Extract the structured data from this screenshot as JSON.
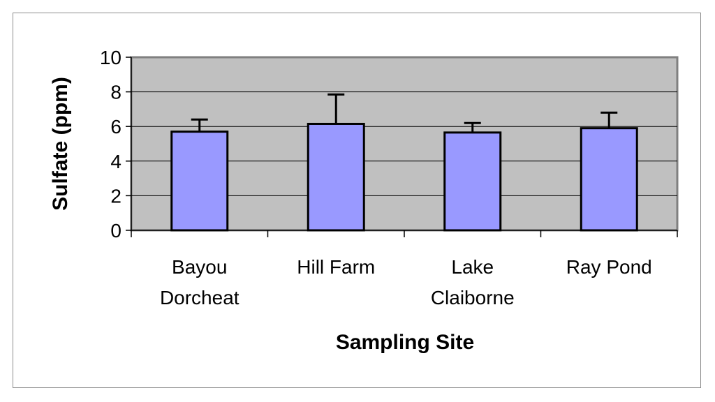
{
  "chart_data": {
    "type": "bar",
    "categories": [
      [
        "Bayou",
        "Dorcheat"
      ],
      [
        "Hill Farm"
      ],
      [
        "Lake",
        "Claiborne"
      ],
      [
        "Ray Pond"
      ]
    ],
    "values": [
      5.7,
      6.15,
      5.65,
      5.9
    ],
    "error_plus": [
      0.7,
      1.7,
      0.55,
      0.9
    ],
    "xlabel": "Sampling Site",
    "ylabel": "Sulfate (ppm)",
    "ylim": [
      0,
      10
    ],
    "yticks": [
      0,
      2,
      4,
      6,
      8,
      10
    ],
    "grid": true,
    "legend": "none",
    "colors": {
      "bar_fill": "#9999ff",
      "bar_stroke": "#000000",
      "plot_bg": "#c0c0c0",
      "gridline": "#000000"
    }
  }
}
